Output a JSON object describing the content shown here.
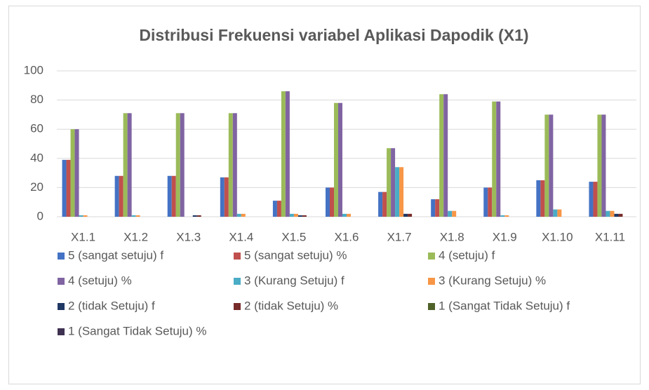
{
  "chart_data": {
    "type": "bar",
    "title": "Distribusi Frekuensi variabel Aplikasi Dapodik (X1)",
    "categories": [
      "X1.1",
      "X1.2",
      "X1.3",
      "X1.4",
      "X1.5",
      "X1.6",
      "X1.7",
      "X1.8",
      "X1.9",
      "X1.10",
      "X1.11"
    ],
    "ylim": [
      0,
      100
    ],
    "yticks": [
      0,
      20,
      40,
      60,
      80,
      100
    ],
    "grid": true,
    "legend": "bottom",
    "series": [
      {
        "name": "5 (sangat setuju) f",
        "color": "#4472c4",
        "values": [
          39,
          28,
          28,
          27,
          11,
          20,
          17,
          12,
          20,
          25,
          24
        ]
      },
      {
        "name": "5 (sangat setuju) %",
        "color": "#c0504d",
        "values": [
          39,
          28,
          28,
          27,
          11,
          20,
          17,
          12,
          20,
          25,
          24
        ]
      },
      {
        "name": "4 (setuju) f",
        "color": "#9bbb59",
        "values": [
          60,
          71,
          71,
          71,
          86,
          78,
          47,
          84,
          79,
          70,
          70
        ]
      },
      {
        "name": "4 (setuju) %",
        "color": "#8064a2",
        "values": [
          60,
          71,
          71,
          71,
          86,
          78,
          47,
          84,
          79,
          70,
          70
        ]
      },
      {
        "name": "3 (Kurang Setuju) f",
        "color": "#4bacc6",
        "values": [
          1,
          1,
          0,
          2,
          2,
          2,
          34,
          4,
          1,
          5,
          4
        ]
      },
      {
        "name": "3 (Kurang Setuju) %",
        "color": "#f79646",
        "values": [
          1,
          1,
          0,
          2,
          2,
          2,
          34,
          4,
          1,
          5,
          4
        ]
      },
      {
        "name": "2 (tidak Setuju) f",
        "color": "#1f3864",
        "values": [
          0,
          0,
          1,
          0,
          1,
          0,
          2,
          0,
          0,
          0,
          2
        ]
      },
      {
        "name": "2 (tidak Setuju) %",
        "color": "#772c2a",
        "values": [
          0,
          0,
          1,
          0,
          1,
          0,
          2,
          0,
          0,
          0,
          2
        ]
      },
      {
        "name": "1 (Sangat Tidak Setuju) f",
        "color": "#4f6228",
        "values": [
          0,
          0,
          0,
          0,
          0,
          0,
          0,
          0,
          0,
          0,
          0
        ]
      },
      {
        "name": "1 (Sangat Tidak Setuju) %",
        "color": "#3f3151",
        "values": [
          0,
          0,
          0,
          0,
          0,
          0,
          0,
          0,
          0,
          0,
          0
        ]
      }
    ]
  }
}
